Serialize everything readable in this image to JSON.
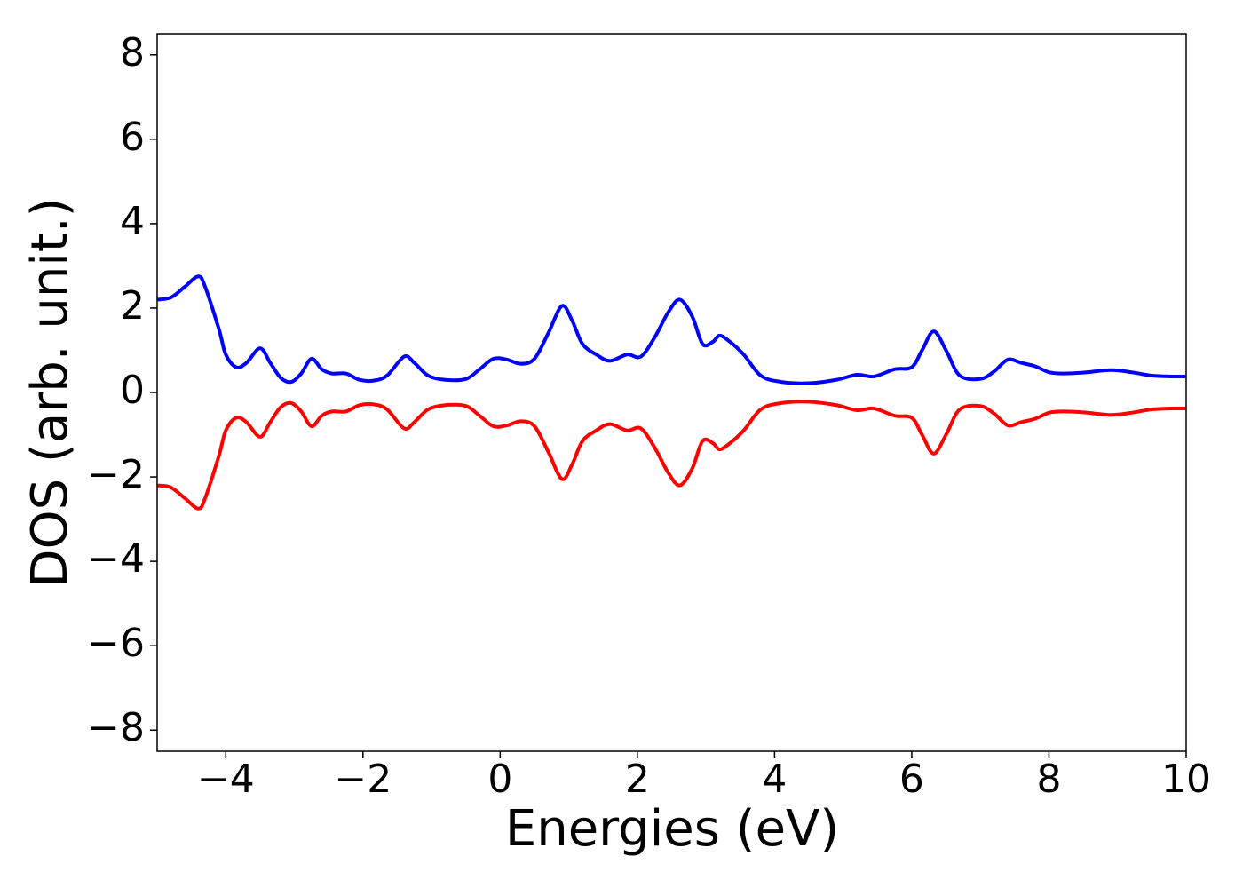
{
  "chart_data": {
    "type": "line",
    "xlabel": "Energies (eV)",
    "ylabel": "DOS (arb. unit.)",
    "x": [
      -5,
      -4.8,
      -4.6,
      -4.4,
      -4.3,
      -4.1,
      -4.0,
      -3.85,
      -3.7,
      -3.5,
      -3.35,
      -3.2,
      -3.05,
      -2.9,
      -2.75,
      -2.6,
      -2.45,
      -2.25,
      -2.05,
      -1.85,
      -1.65,
      -1.4,
      -1.25,
      -1.05,
      -0.8,
      -0.5,
      -0.3,
      -0.1,
      0.1,
      0.3,
      0.5,
      0.7,
      0.9,
      1.05,
      1.2,
      1.4,
      1.6,
      1.85,
      2.05,
      2.25,
      2.45,
      2.62,
      2.8,
      2.95,
      3.1,
      3.2,
      3.35,
      3.55,
      3.8,
      4.1,
      4.5,
      4.9,
      5.2,
      5.45,
      5.75,
      6.0,
      6.15,
      6.32,
      6.5,
      6.7,
      7.0,
      7.2,
      7.4,
      7.6,
      7.8,
      8.0,
      8.2,
      8.5,
      8.9,
      9.2,
      9.5,
      9.8,
      10
    ],
    "series": [
      {
        "color": "#0000ff",
        "values": [
          2.2,
          2.25,
          2.5,
          2.75,
          2.5,
          1.5,
          0.9,
          0.6,
          0.7,
          1.05,
          0.7,
          0.35,
          0.25,
          0.45,
          0.8,
          0.55,
          0.45,
          0.45,
          0.3,
          0.28,
          0.4,
          0.85,
          0.7,
          0.4,
          0.3,
          0.32,
          0.55,
          0.8,
          0.78,
          0.68,
          0.8,
          1.4,
          2.05,
          1.7,
          1.15,
          0.9,
          0.75,
          0.9,
          0.85,
          1.3,
          1.9,
          2.2,
          1.8,
          1.15,
          1.2,
          1.35,
          1.2,
          0.9,
          0.4,
          0.25,
          0.22,
          0.3,
          0.42,
          0.38,
          0.55,
          0.6,
          1.0,
          1.45,
          1.0,
          0.4,
          0.32,
          0.5,
          0.78,
          0.7,
          0.62,
          0.48,
          0.45,
          0.47,
          0.53,
          0.48,
          0.4,
          0.38,
          0.38
        ]
      },
      {
        "color": "#ff0000",
        "values": [
          -2.2,
          -2.25,
          -2.5,
          -2.75,
          -2.5,
          -1.5,
          -0.9,
          -0.6,
          -0.7,
          -1.05,
          -0.7,
          -0.35,
          -0.25,
          -0.45,
          -0.8,
          -0.55,
          -0.45,
          -0.45,
          -0.3,
          -0.28,
          -0.4,
          -0.85,
          -0.7,
          -0.4,
          -0.3,
          -0.32,
          -0.55,
          -0.8,
          -0.78,
          -0.68,
          -0.8,
          -1.4,
          -2.05,
          -1.7,
          -1.15,
          -0.9,
          -0.75,
          -0.9,
          -0.85,
          -1.3,
          -1.9,
          -2.2,
          -1.8,
          -1.15,
          -1.2,
          -1.35,
          -1.2,
          -0.9,
          -0.4,
          -0.25,
          -0.22,
          -0.3,
          -0.42,
          -0.38,
          -0.55,
          -0.6,
          -1.0,
          -1.45,
          -1.0,
          -0.4,
          -0.32,
          -0.5,
          -0.78,
          -0.7,
          -0.62,
          -0.48,
          -0.45,
          -0.47,
          -0.53,
          -0.48,
          -0.4,
          -0.38,
          -0.38
        ]
      }
    ],
    "xlim": [
      -5,
      10
    ],
    "xticks": [
      {
        "value": -4,
        "label": "−4"
      },
      {
        "value": -2,
        "label": "−2"
      },
      0,
      2,
      4,
      6,
      8,
      10
    ],
    "ylim": [
      -8.5,
      8.5
    ],
    "yticks": [
      {
        "value": -8,
        "label": "−8"
      },
      {
        "value": -6,
        "label": "−6"
      },
      {
        "value": -4,
        "label": "−4"
      },
      {
        "value": -2,
        "label": "−2"
      },
      0,
      2,
      4,
      6,
      8
    ],
    "grid": false
  }
}
